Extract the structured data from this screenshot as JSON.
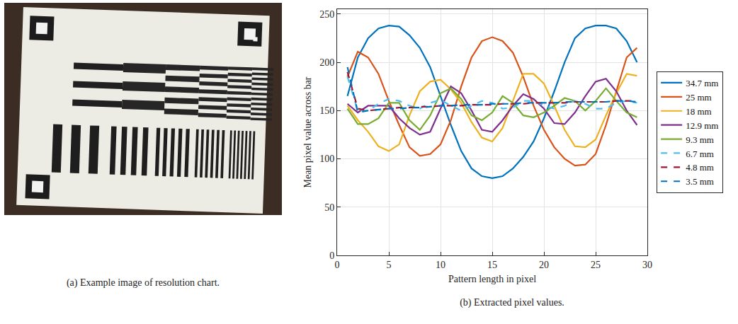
{
  "panel_a": {
    "caption": "(a) Example image of resolution chart."
  },
  "chart_data": {
    "type": "line",
    "caption": "(b) Extracted pixel values.",
    "x_label": "Pattern length in pixel",
    "y_label": "Mean pixel value across bar",
    "x": [
      1,
      2,
      3,
      4,
      5,
      6,
      7,
      8,
      9,
      10,
      11,
      12,
      13,
      14,
      15,
      16,
      17,
      18,
      19,
      20,
      21,
      22,
      23,
      24,
      25,
      26,
      27,
      28,
      29
    ],
    "xlim": [
      0,
      30
    ],
    "xticks": [
      0,
      5,
      10,
      15,
      20,
      25,
      30
    ],
    "ylim": [
      0,
      255
    ],
    "yticks": [
      0,
      50,
      100,
      150,
      200,
      250
    ],
    "grid": true,
    "legend": "right",
    "series": [
      {
        "name": "34.7 mm",
        "color": "#0072BD",
        "line_style": "solid",
        "values": [
          165,
          205,
          225,
          235,
          238,
          237,
          228,
          215,
          195,
          165,
          135,
          108,
          90,
          82,
          80,
          82,
          90,
          102,
          118,
          142,
          170,
          200,
          225,
          235,
          238,
          238,
          235,
          222,
          200
        ]
      },
      {
        "name": "25 mm",
        "color": "#D95319",
        "line_style": "solid",
        "values": [
          185,
          211,
          205,
          188,
          160,
          135,
          112,
          103,
          105,
          115,
          140,
          175,
          205,
          222,
          226,
          222,
          210,
          185,
          155,
          130,
          112,
          100,
          93,
          94,
          105,
          135,
          170,
          205,
          215
        ]
      },
      {
        "name": "18 mm",
        "color": "#EDB120",
        "line_style": "solid",
        "values": [
          155,
          140,
          128,
          113,
          108,
          115,
          145,
          170,
          180,
          182,
          172,
          158,
          138,
          122,
          118,
          132,
          160,
          188,
          188,
          178,
          155,
          130,
          113,
          112,
          120,
          145,
          168,
          188,
          186
        ]
      },
      {
        "name": "12.9 mm",
        "color": "#7E2F8E",
        "line_style": "solid",
        "values": [
          157,
          148,
          155,
          155,
          155,
          142,
          132,
          125,
          128,
          152,
          175,
          168,
          150,
          130,
          128,
          140,
          155,
          167,
          162,
          152,
          137,
          136,
          148,
          165,
          180,
          183,
          170,
          150,
          135
        ]
      },
      {
        "name": "9.3 mm",
        "color": "#77AC30",
        "line_style": "solid",
        "values": [
          152,
          136,
          136,
          142,
          158,
          158,
          140,
          130,
          145,
          168,
          173,
          162,
          145,
          140,
          148,
          165,
          158,
          145,
          143,
          148,
          155,
          163,
          160,
          150,
          160,
          173,
          160,
          148,
          143
        ]
      },
      {
        "name": "6.7 mm",
        "color": "#4DBEEE",
        "line_style": "dashed",
        "values": [
          185,
          150,
          150,
          157,
          162,
          160,
          155,
          152,
          158,
          161,
          155,
          150,
          155,
          160,
          158,
          152,
          153,
          160,
          160,
          155,
          152,
          155,
          160,
          157,
          152,
          152,
          158,
          160,
          158
        ]
      },
      {
        "name": "4.8 mm",
        "color": "#A2142F",
        "line_style": "dashed",
        "values": [
          190,
          152,
          150,
          151,
          152,
          153,
          153,
          154,
          154,
          155,
          155,
          155,
          156,
          156,
          156,
          157,
          157,
          157,
          158,
          158,
          158,
          158,
          159,
          159,
          159,
          159,
          160,
          160,
          160
        ]
      },
      {
        "name": "3.5 mm",
        "color": "#0072BD",
        "line_style": "dashed",
        "values": [
          195,
          148,
          150,
          151,
          152,
          152,
          153,
          153,
          154,
          155,
          155,
          156,
          156,
          156,
          157,
          157,
          157,
          158,
          158,
          158,
          158,
          159,
          159,
          159,
          159,
          159,
          160,
          160,
          159
        ]
      }
    ]
  }
}
